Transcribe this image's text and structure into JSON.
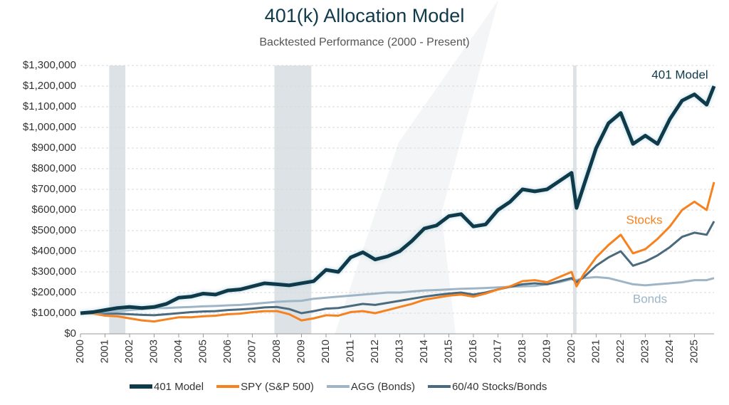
{
  "chart_data": {
    "type": "line",
    "title": "401(k) Allocation Model",
    "subtitle": "Backtested Performance (2000 - Present)",
    "x": [
      2000,
      2000.5,
      2001,
      2001.5,
      2002,
      2002.5,
      2003,
      2003.5,
      2004,
      2004.5,
      2005,
      2005.5,
      2006,
      2006.5,
      2007,
      2007.5,
      2008,
      2008.5,
      2009,
      2009.5,
      2010,
      2010.5,
      2011,
      2011.5,
      2012,
      2012.5,
      2013,
      2013.5,
      2014,
      2014.5,
      2015,
      2015.5,
      2016,
      2016.5,
      2017,
      2017.5,
      2018,
      2018.5,
      2019,
      2019.5,
      2020,
      2020.2,
      2020.5,
      2021,
      2021.5,
      2022,
      2022.5,
      2023,
      2023.5,
      2024,
      2024.5,
      2025,
      2025.5,
      2025.8
    ],
    "series": [
      {
        "name": "401 Model",
        "color": "#0f3a4a",
        "width": 5,
        "values": [
          100000,
          105000,
          115000,
          125000,
          130000,
          125000,
          130000,
          145000,
          175000,
          180000,
          195000,
          190000,
          210000,
          215000,
          230000,
          245000,
          240000,
          235000,
          245000,
          255000,
          310000,
          300000,
          370000,
          395000,
          360000,
          375000,
          400000,
          450000,
          510000,
          525000,
          570000,
          580000,
          520000,
          530000,
          600000,
          640000,
          700000,
          690000,
          700000,
          740000,
          780000,
          610000,
          720000,
          900000,
          1020000,
          1070000,
          920000,
          960000,
          920000,
          1040000,
          1130000,
          1160000,
          1110000,
          1200000
        ]
      },
      {
        "name": "SPY (S&P 500)",
        "color": "#f5821f",
        "width": 3,
        "values": [
          100000,
          98000,
          88000,
          85000,
          75000,
          65000,
          60000,
          70000,
          80000,
          80000,
          85000,
          88000,
          95000,
          98000,
          105000,
          110000,
          110000,
          95000,
          65000,
          75000,
          90000,
          88000,
          105000,
          110000,
          100000,
          115000,
          130000,
          145000,
          165000,
          175000,
          185000,
          190000,
          180000,
          195000,
          215000,
          230000,
          255000,
          260000,
          250000,
          275000,
          300000,
          230000,
          290000,
          370000,
          430000,
          480000,
          390000,
          410000,
          460000,
          520000,
          600000,
          640000,
          600000,
          735000
        ]
      },
      {
        "name": "AGG (Bonds)",
        "color": "#9db5c6",
        "width": 3,
        "values": [
          100000,
          102000,
          108000,
          110000,
          115000,
          120000,
          125000,
          125000,
          128000,
          130000,
          133000,
          135000,
          138000,
          140000,
          145000,
          150000,
          155000,
          158000,
          160000,
          170000,
          175000,
          180000,
          185000,
          190000,
          195000,
          200000,
          200000,
          205000,
          210000,
          212000,
          215000,
          218000,
          220000,
          222000,
          225000,
          228000,
          230000,
          232000,
          240000,
          250000,
          265000,
          260000,
          270000,
          275000,
          270000,
          255000,
          240000,
          235000,
          240000,
          245000,
          250000,
          260000,
          260000,
          270000
        ]
      },
      {
        "name": "60/40 Stocks/Bonds",
        "color": "#4b6a7e",
        "width": 3,
        "values": [
          100000,
          100000,
          98000,
          98000,
          95000,
          92000,
          90000,
          95000,
          100000,
          105000,
          108000,
          110000,
          115000,
          118000,
          122000,
          128000,
          130000,
          120000,
          100000,
          110000,
          122000,
          125000,
          135000,
          145000,
          140000,
          150000,
          160000,
          170000,
          180000,
          188000,
          195000,
          200000,
          190000,
          200000,
          215000,
          228000,
          240000,
          245000,
          240000,
          255000,
          270000,
          250000,
          275000,
          330000,
          370000,
          400000,
          330000,
          350000,
          380000,
          420000,
          470000,
          490000,
          480000,
          545000
        ]
      }
    ],
    "annotations": [
      "401 Model",
      "Stocks",
      "Bonds"
    ],
    "shaded_regions": [
      [
        2001.17,
        2001.83
      ],
      [
        2007.9,
        2009.4
      ],
      [
        2020.06,
        2020.2
      ]
    ],
    "shade_color": "#dde2e6",
    "xlim": [
      2000,
      2025.8
    ],
    "xticks": [
      2000,
      2001,
      2002,
      2003,
      2004,
      2005,
      2006,
      2007,
      2008,
      2009,
      2010,
      2011,
      2012,
      2013,
      2014,
      2015,
      2016,
      2017,
      2018,
      2019,
      2020,
      2021,
      2022,
      2023,
      2024,
      2025
    ],
    "ylim": [
      0,
      1300000
    ],
    "yticks": [
      {
        "value": 0,
        "label": "$0"
      },
      {
        "value": 100000,
        "label": "$100,000"
      },
      {
        "value": 200000,
        "label": "$200,000"
      },
      {
        "value": 300000,
        "label": "$300,000"
      },
      {
        "value": 400000,
        "label": "$400,000"
      },
      {
        "value": 500000,
        "label": "$500,000"
      },
      {
        "value": 600000,
        "label": "$600,000"
      },
      {
        "value": 700000,
        "label": "$700,000"
      },
      {
        "value": 800000,
        "label": "$800,000"
      },
      {
        "value": 900000,
        "label": "$900,000"
      },
      {
        "value": 1000000,
        "label": "$1,000,000"
      },
      {
        "value": 1100000,
        "label": "$1,100,000"
      },
      {
        "value": 1200000,
        "label": "$1,200,000"
      },
      {
        "value": 1300000,
        "label": "$1,300,000"
      }
    ],
    "grid": true,
    "legend": "bottom"
  }
}
